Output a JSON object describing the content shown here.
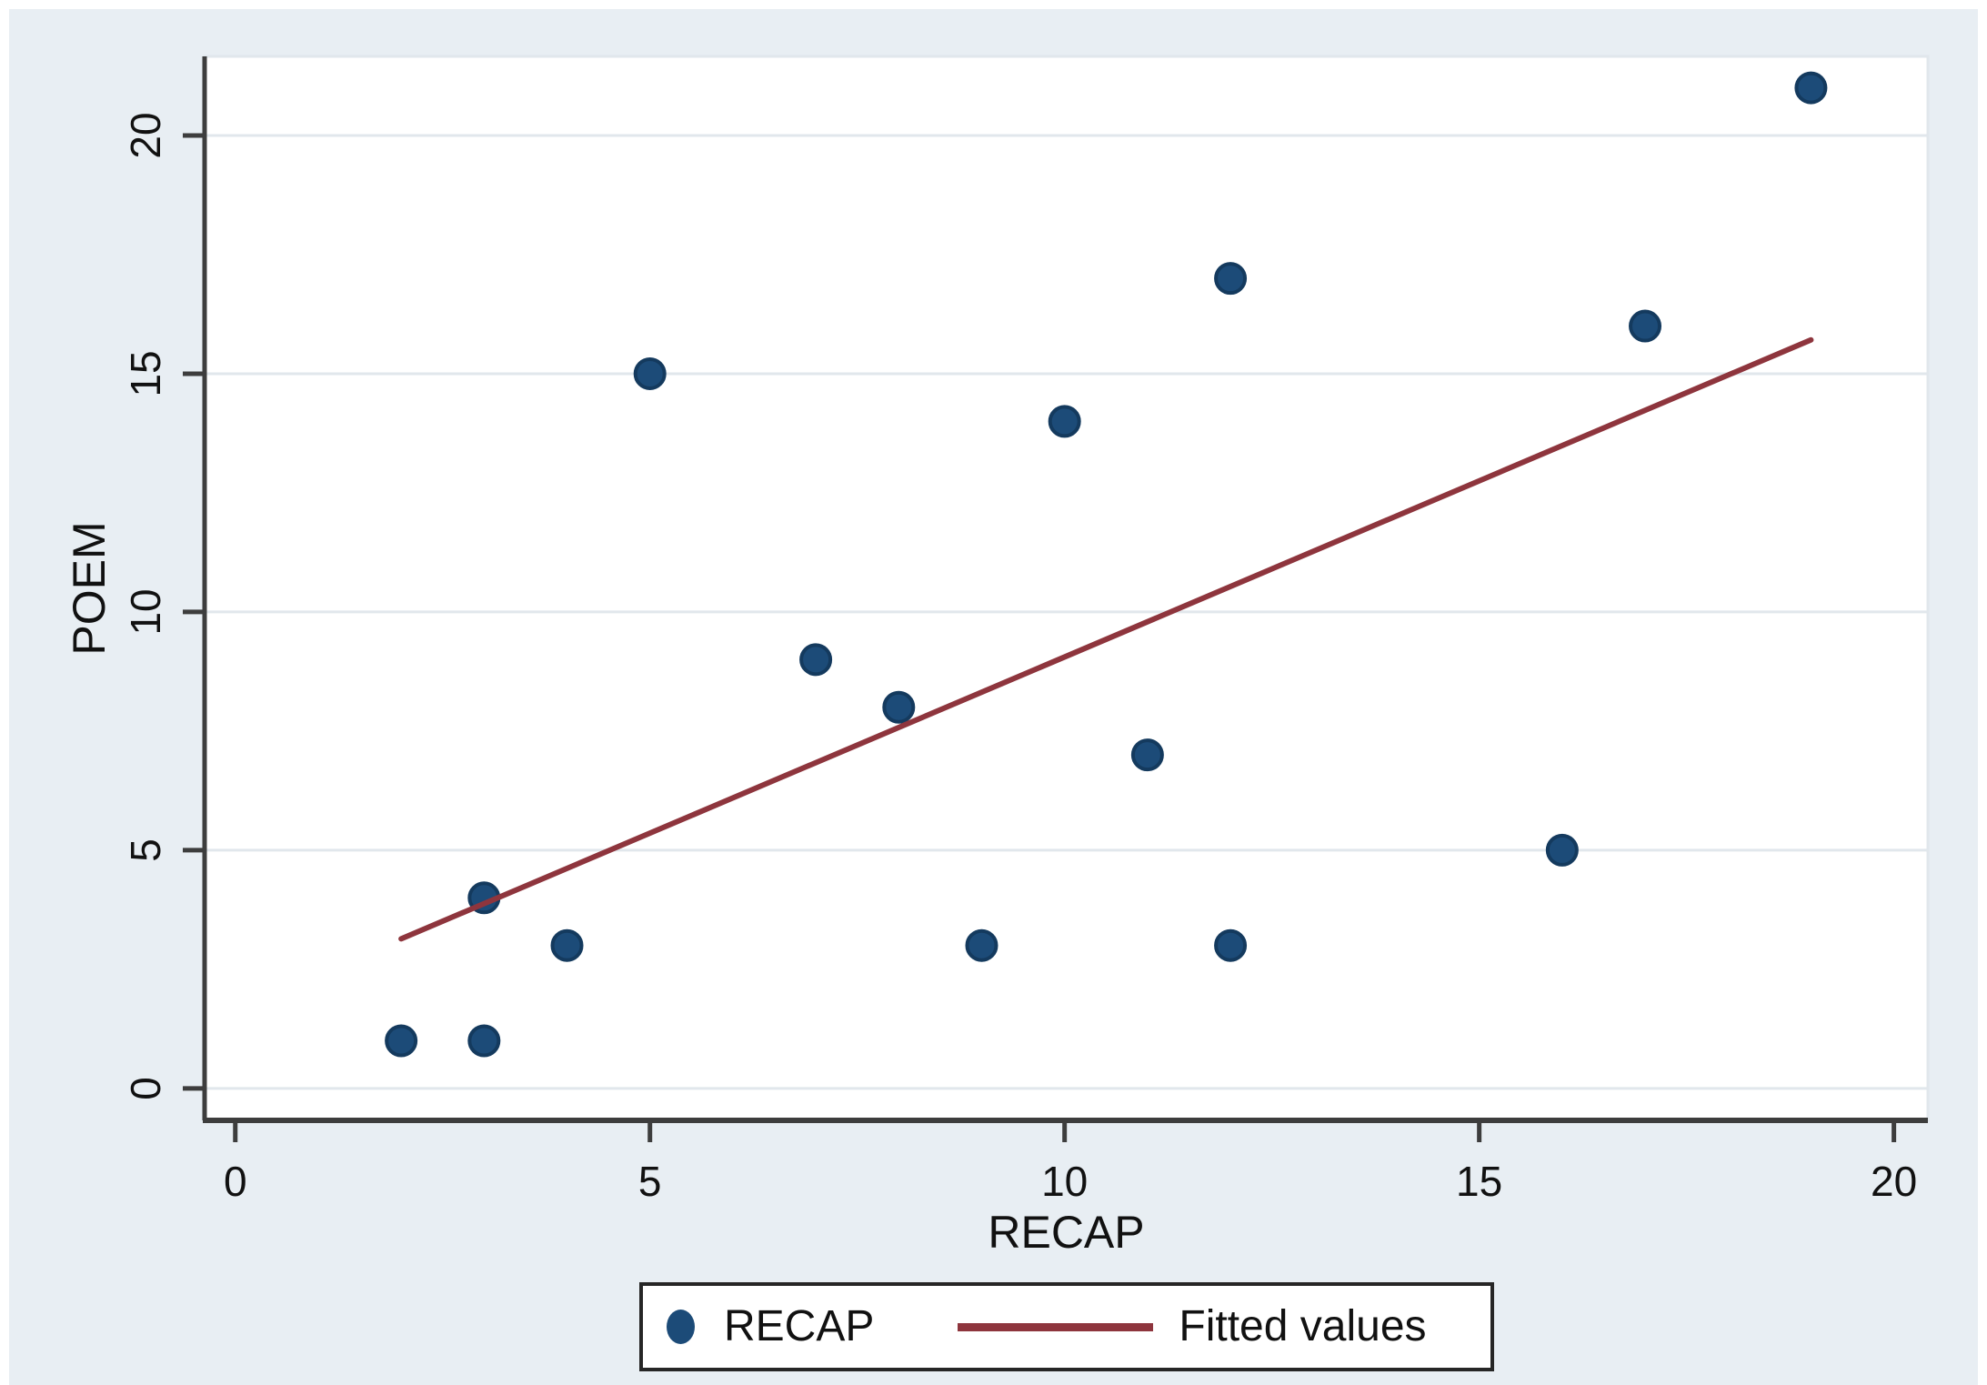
{
  "figure": {
    "background": "#ffffff",
    "graph_region_bg": "#e8eef3",
    "plot_area_bg": "#ffffff",
    "grid_color": "#e1e7ec",
    "axis_color": "#3d3d3d",
    "text_color": "#111111",
    "marker_color": "#1c4b78",
    "marker_edge_color": "#143a5e",
    "fitted_line_color": "#8e353d",
    "legend_border_color": "#262626"
  },
  "chart_data": {
    "type": "scatter",
    "title": "",
    "xlabel": "RECAP",
    "ylabel": "POEM",
    "xlim": [
      -0.37,
      20.41
    ],
    "ylim": [
      -0.67,
      21.66
    ],
    "xticks": [
      0,
      5,
      10,
      15,
      20
    ],
    "yticks": [
      0,
      5,
      10,
      15,
      20
    ],
    "grid": "horizontal",
    "marker_radius_px": 16,
    "series": [
      {
        "name": "RECAP",
        "kind": "scatter",
        "points": [
          [
            2,
            1
          ],
          [
            3,
            1
          ],
          [
            3,
            4
          ],
          [
            4,
            3
          ],
          [
            5,
            15
          ],
          [
            7,
            9
          ],
          [
            8,
            8
          ],
          [
            9,
            3
          ],
          [
            10,
            14
          ],
          [
            11,
            7
          ],
          [
            12,
            3
          ],
          [
            12,
            17
          ],
          [
            16,
            5
          ],
          [
            17,
            16
          ],
          [
            19,
            21
          ]
        ]
      },
      {
        "name": "Fitted values",
        "kind": "line",
        "points": [
          [
            2,
            3.14
          ],
          [
            19,
            15.71
          ]
        ]
      }
    ],
    "legend": {
      "position": "bottom-center",
      "items": [
        {
          "label": "RECAP",
          "marker": "dot"
        },
        {
          "label": "Fitted values",
          "marker": "line"
        }
      ]
    }
  }
}
